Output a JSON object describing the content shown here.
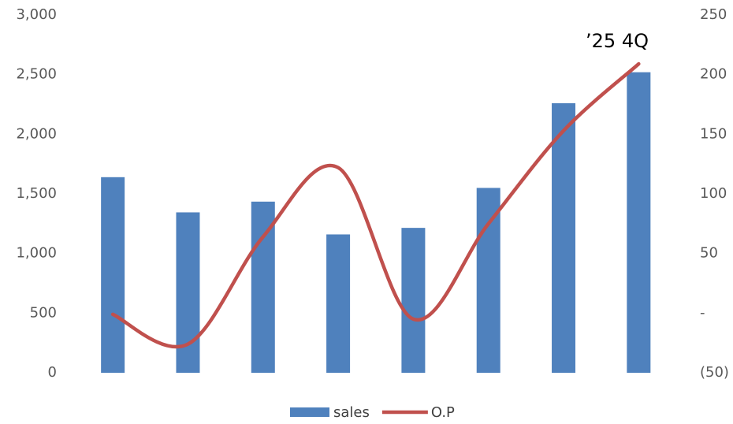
{
  "chart_data": {
    "type": "bar-line",
    "categories": [
      null,
      null,
      null,
      null,
      null,
      null,
      null,
      null
    ],
    "series": [
      {
        "name": "sales",
        "type": "bar",
        "color": "#4f81bd",
        "values": [
          1640,
          1345,
          1435,
          1160,
          1215,
          1550,
          2260,
          2520
        ]
      },
      {
        "name": "O.P",
        "type": "line",
        "axis": "y2",
        "color": "#c0504d",
        "values": [
          -1,
          -26,
          64,
          122,
          -5,
          75,
          153,
          209
        ]
      }
    ],
    "ylim": [
      0,
      3000
    ],
    "yticks": [
      0,
      500,
      {
        "value": 1000,
        "label": "1,000"
      },
      {
        "value": 1500,
        "label": "1,500"
      },
      {
        "value": 2000,
        "label": "2,000"
      },
      {
        "value": 2500,
        "label": "2,500"
      },
      {
        "value": 3000,
        "label": "3,000"
      }
    ],
    "y2lim": [
      -50,
      250
    ],
    "y2ticks": [
      {
        "value": -50,
        "label": "(50)"
      },
      {
        "value": 0,
        "label": "-"
      },
      50,
      100,
      150,
      200,
      250
    ],
    "annotation": "’25 4Q",
    "grid": false
  }
}
